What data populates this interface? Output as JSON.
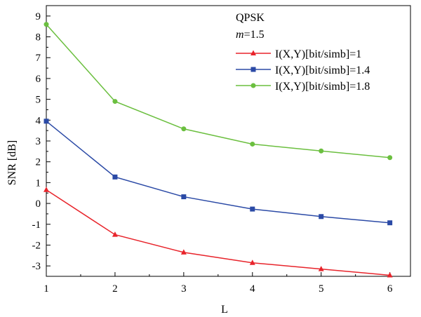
{
  "chart_data": {
    "type": "line",
    "xlabel": "L",
    "ylabel": "SNR [dB]",
    "xlim": [
      1,
      6.3
    ],
    "ylim": [
      -3.5,
      9.5
    ],
    "x_ticks": [
      1,
      2,
      3,
      4,
      5,
      6
    ],
    "y_ticks": [
      -3,
      -2,
      -1,
      0,
      1,
      2,
      3,
      4,
      5,
      6,
      7,
      8,
      9
    ],
    "grid": false,
    "legend_placement": "top-right",
    "legend_header": [
      "QPSK",
      "m=1.5"
    ],
    "x": [
      1,
      2,
      3,
      4,
      5,
      6
    ],
    "series": [
      {
        "name": "I(X,Y)[bit/simb]=1",
        "color": "#e8242b",
        "marker": "triangle",
        "values": [
          0.65,
          -1.5,
          -2.35,
          -2.85,
          -3.15,
          -3.45
        ]
      },
      {
        "name": "I(X,Y)[bit/simb]=1.4",
        "color": "#2b4aa6",
        "marker": "square",
        "values": [
          3.95,
          1.27,
          0.32,
          -0.27,
          -0.63,
          -0.93
        ]
      },
      {
        "name": "I(X,Y)[bit/simb]=1.8",
        "color": "#6bbf3f",
        "marker": "circle",
        "values": [
          8.6,
          4.9,
          3.58,
          2.85,
          2.52,
          2.2
        ]
      }
    ]
  }
}
